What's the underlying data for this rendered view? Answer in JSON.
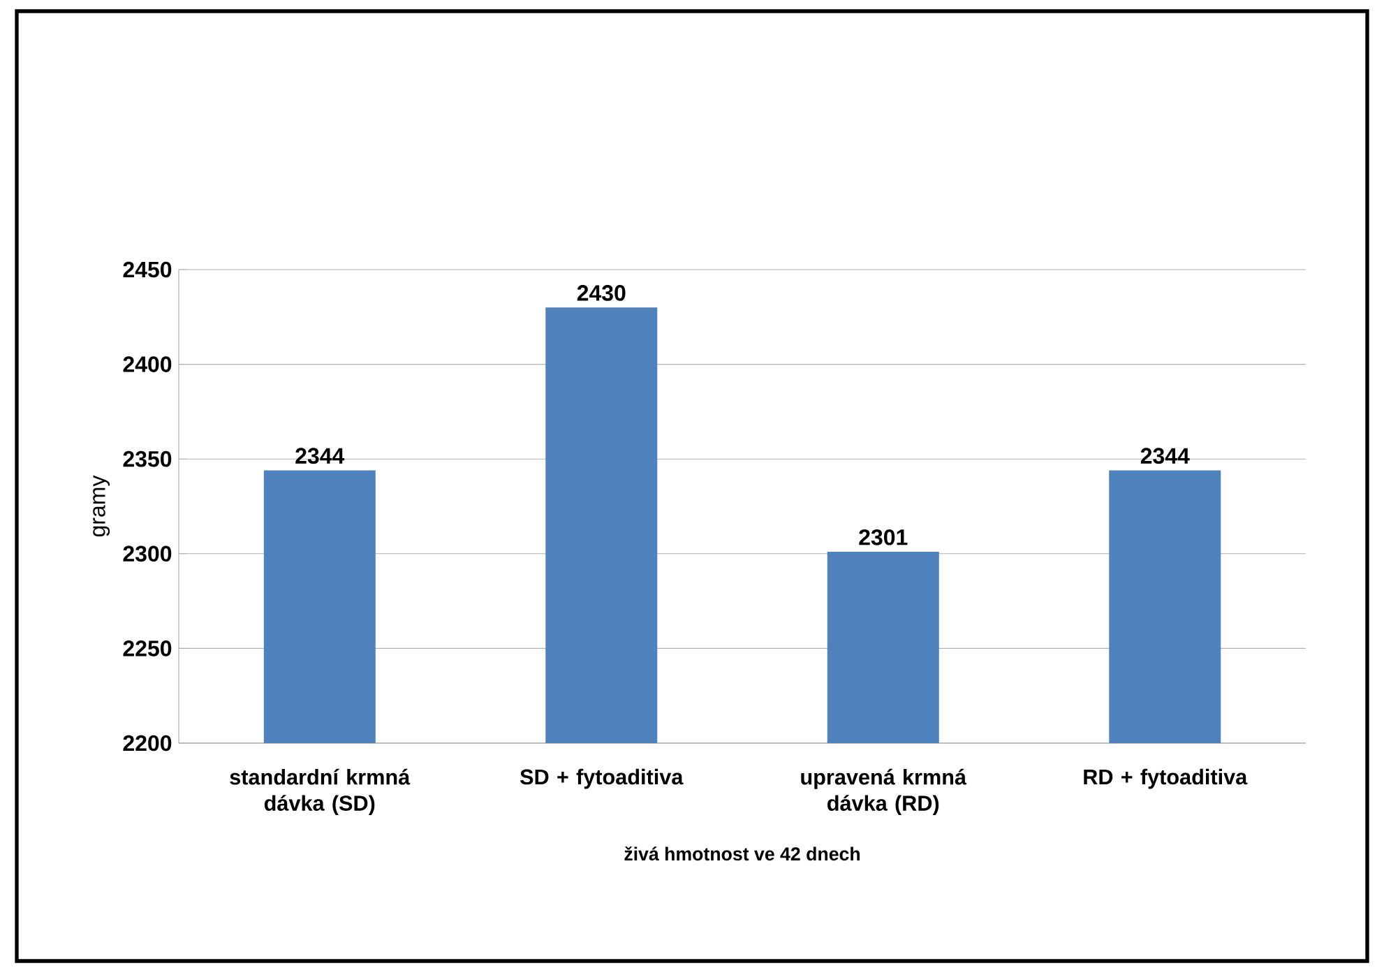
{
  "chart_data": {
    "type": "bar",
    "xlabel": "živá hmotnost ve 42 dnech",
    "ylabel": "gramy",
    "categories": [
      "standardní krmná dávka (SD)",
      "SD + fytoaditiva",
      "upravená krmná dávka (RD)",
      "RD + fytoaditiva"
    ],
    "values": [
      2344,
      2430,
      2301,
      2344
    ],
    "color": "#4f81bd",
    "data_labels": true,
    "ylim": [
      2200,
      2450
    ],
    "yticks": [
      2200,
      2250,
      2300,
      2350,
      2400,
      2450
    ],
    "grid": "y"
  }
}
